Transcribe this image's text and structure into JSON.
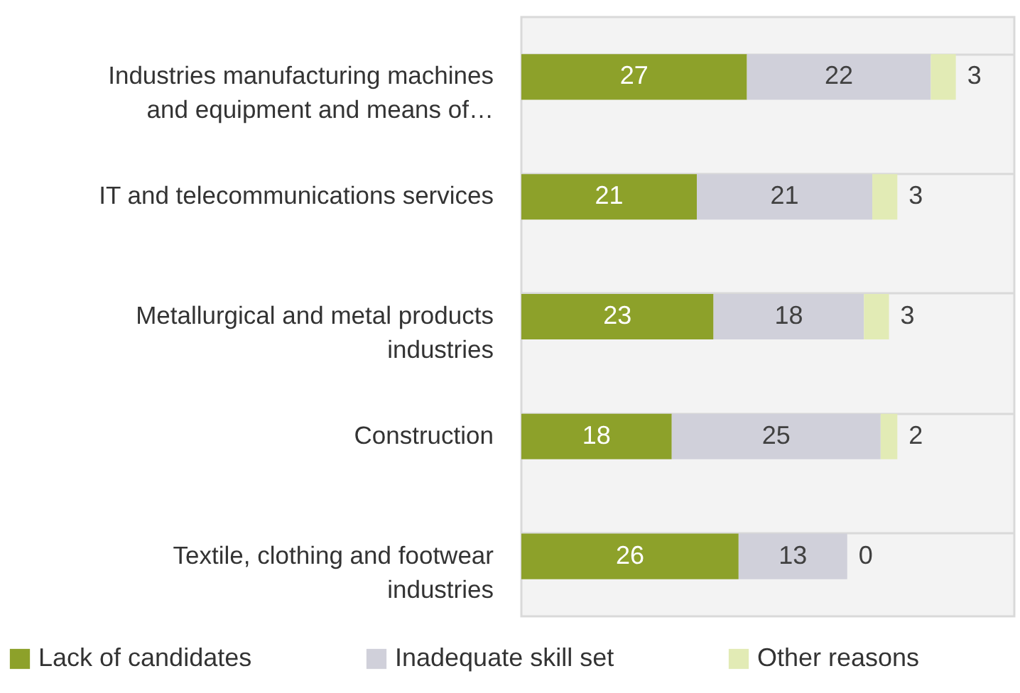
{
  "chart_data": {
    "type": "bar",
    "orientation": "horizontal",
    "stacked": true,
    "data_labels": true,
    "grid": "y",
    "legend": "bottom",
    "tick_labels": "y",
    "xlim": [
      0,
      59
    ],
    "categories": [
      "Industries manufacturing machines and equipment and means of…",
      "IT and telecommunications services",
      "Metallurgical and metal products industries",
      "Construction",
      "Textile, clothing and footwear industries"
    ],
    "series": [
      {
        "name": "Lack of candidates",
        "color": "#8da12a",
        "values": [
          27,
          21,
          23,
          18,
          26
        ]
      },
      {
        "name": "Inadequate skill set",
        "color": "#d0d0da",
        "values": [
          22,
          21,
          18,
          25,
          13
        ]
      },
      {
        "name": "Other reasons",
        "color": "#e2ebb5",
        "values": [
          3,
          3,
          3,
          2,
          0
        ]
      }
    ]
  }
}
